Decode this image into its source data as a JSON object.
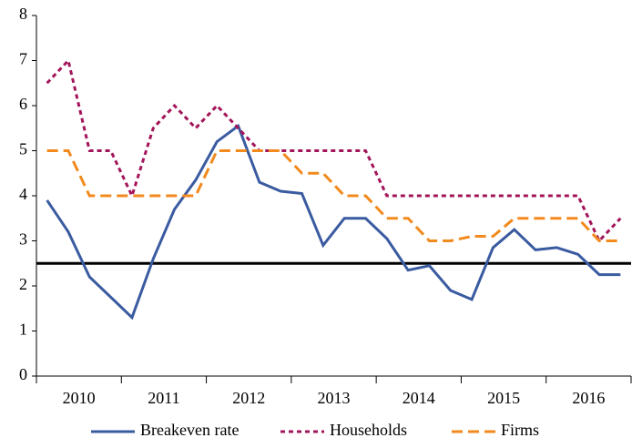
{
  "chart_data": {
    "type": "line",
    "categories": [
      "2010",
      null,
      null,
      null,
      "2011",
      null,
      null,
      null,
      "2012",
      null,
      null,
      null,
      "2013",
      null,
      null,
      null,
      "2014",
      null,
      null,
      null,
      "2015",
      null,
      null,
      null,
      "2016",
      null,
      null,
      null
    ],
    "series": [
      {
        "name": "Breakeven rate",
        "color": "#3a5ba0",
        "dash": "solid",
        "values": [
          3.9,
          3.2,
          2.2,
          1.75,
          1.3,
          2.6,
          3.7,
          4.35,
          5.2,
          5.55,
          4.3,
          4.1,
          4.05,
          2.9,
          3.5,
          3.5,
          3.05,
          2.35,
          2.45,
          1.9,
          1.7,
          2.85,
          3.25,
          2.8,
          2.85,
          2.7,
          2.25,
          2.25
        ]
      },
      {
        "name": "Households",
        "color": "#a3155a",
        "dash": "short",
        "values": [
          6.5,
          7.0,
          5.0,
          5.0,
          4.0,
          5.5,
          6.0,
          5.5,
          6.0,
          5.5,
          5.0,
          5.0,
          5.0,
          5.0,
          5.0,
          5.0,
          4.0,
          4.0,
          4.0,
          4.0,
          4.0,
          4.0,
          4.0,
          4.0,
          4.0,
          4.0,
          3.0,
          3.5
        ]
      },
      {
        "name": "Firms",
        "color": "#f28a1e",
        "dash": "long",
        "values": [
          5.0,
          5.0,
          4.0,
          4.0,
          4.0,
          4.0,
          4.0,
          4.0,
          5.0,
          5.0,
          5.0,
          5.0,
          4.5,
          4.5,
          4.0,
          4.0,
          3.5,
          3.5,
          3.0,
          3.0,
          3.1,
          3.1,
          3.5,
          3.5,
          3.5,
          3.5,
          3.0,
          3.0
        ]
      }
    ],
    "reference_line": 2.5,
    "ylim": [
      0,
      8
    ],
    "yticks": [
      0,
      1,
      2,
      3,
      4,
      5,
      6,
      7,
      8
    ],
    "legend": "bottom"
  }
}
